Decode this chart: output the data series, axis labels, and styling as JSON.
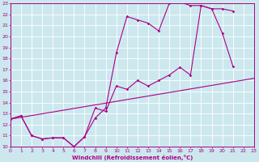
{
  "xlabel": "Windchill (Refroidissement éolien,°C)",
  "bg_color": "#cce8ee",
  "grid_color": "#aacccc",
  "line_color": "#aa0088",
  "xmin": 0,
  "xmax": 23,
  "ymin": 10,
  "ymax": 23,
  "curve1_x": [
    0,
    1,
    2,
    3,
    4,
    5,
    6,
    7,
    8,
    9,
    10,
    11,
    12,
    13,
    14,
    15,
    16,
    17,
    18,
    19,
    20,
    21
  ],
  "curve1_y": [
    12.5,
    12.8,
    11.0,
    10.7,
    10.8,
    10.8,
    10.0,
    10.9,
    12.6,
    13.5,
    18.5,
    21.8,
    21.5,
    21.2,
    20.5,
    23.0,
    23.1,
    22.8,
    22.8,
    22.5,
    20.3,
    17.3
  ],
  "curve2_x": [
    0,
    1,
    2,
    3,
    4,
    5,
    6,
    7,
    8,
    9,
    10,
    11,
    12,
    13,
    14,
    15,
    16,
    17,
    18,
    19,
    20,
    21
  ],
  "curve2_y": [
    12.5,
    12.8,
    11.0,
    10.7,
    10.8,
    10.8,
    10.0,
    10.9,
    13.5,
    13.2,
    15.5,
    15.2,
    16.0,
    15.5,
    16.0,
    16.5,
    17.2,
    16.5,
    22.8,
    22.5,
    22.5,
    22.3
  ],
  "line3_x": [
    0,
    23
  ],
  "line3_y": [
    12.5,
    16.2
  ]
}
